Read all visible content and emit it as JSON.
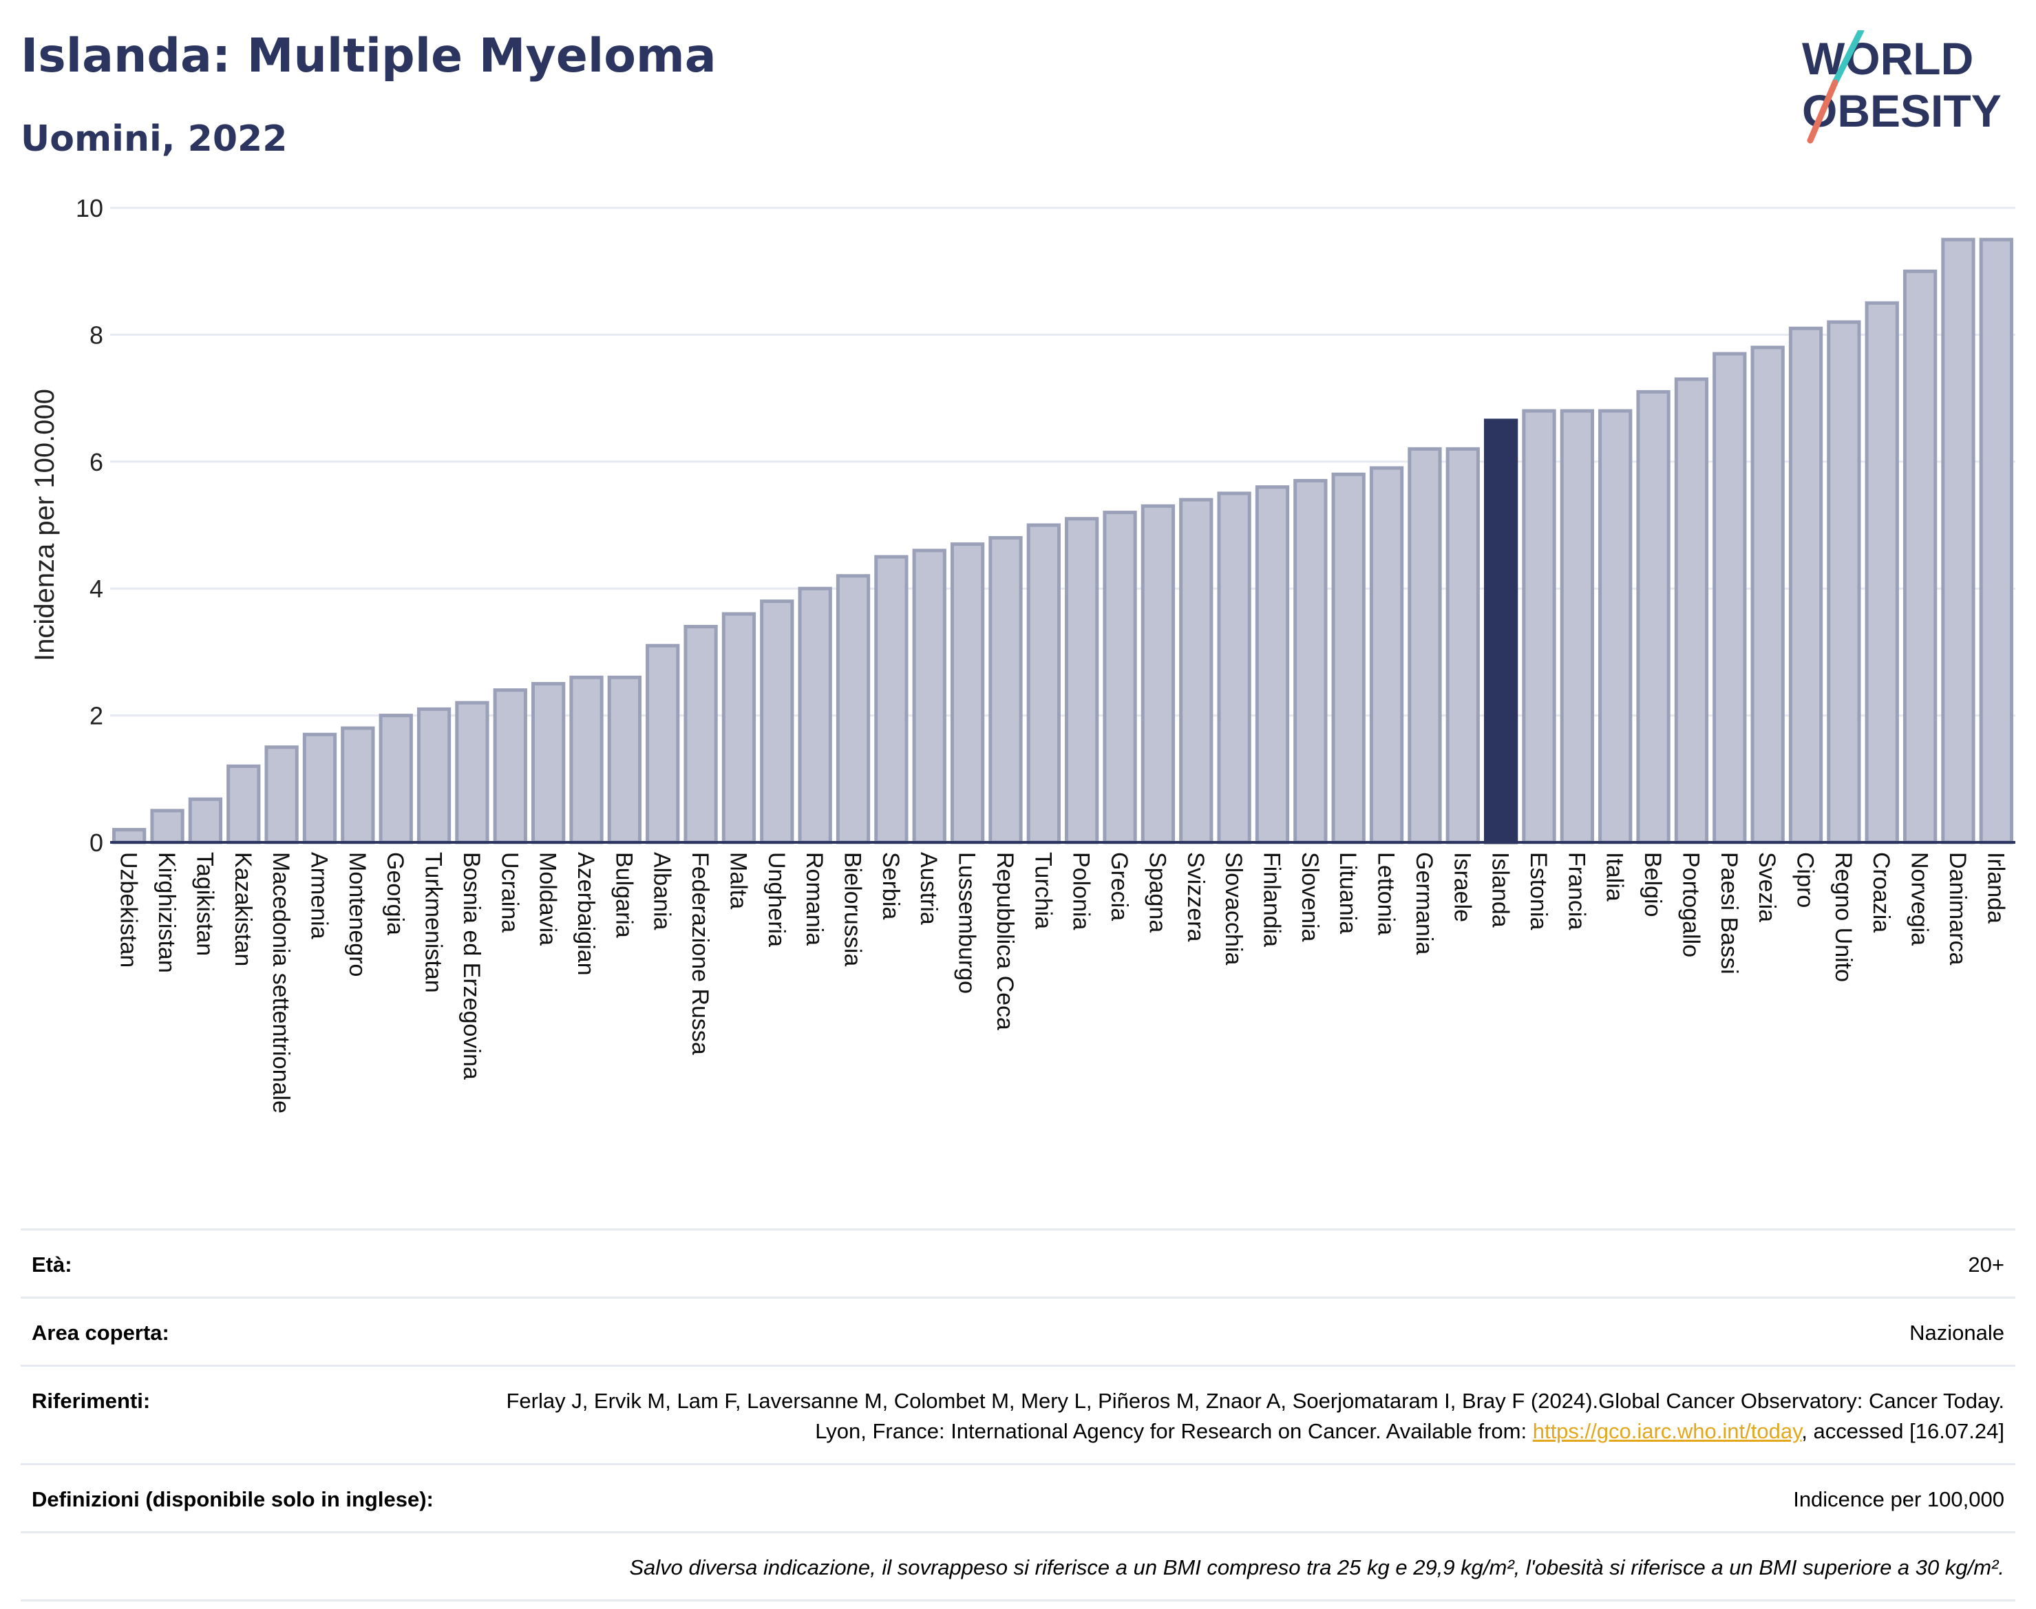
{
  "header": {
    "title": "Islanda: Multiple Myeloma",
    "subtitle": "Uomini, 2022"
  },
  "logo": {
    "line1": "WORLD",
    "line2": "OBESITY",
    "text_color": "#2b3560",
    "slash_colors": [
      "#3cc4c0",
      "#e5735e"
    ]
  },
  "colors": {
    "bar": "#bfc3d3",
    "bar_stroke": "#9aa0b8",
    "highlight": "#2b3560",
    "grid": "#e6e9f0",
    "axis": "#2b3560"
  },
  "chart_data": {
    "type": "bar",
    "ylabel": "Incidenza per 100.000",
    "ylim": [
      0,
      10
    ],
    "yticks": [
      0,
      2,
      4,
      6,
      8,
      10
    ],
    "grid": true,
    "highlight": "Islanda",
    "categories": [
      "Uzbekistan",
      "Kirghizistan",
      "Tagikistan",
      "Kazakistan",
      "Macedonia settentrionale",
      "Armenia",
      "Montenegro",
      "Georgia",
      "Turkmenistan",
      "Bosnia ed Erzegovina",
      "Ucraina",
      "Moldavia",
      "Azerbaigian",
      "Bulgaria",
      "Albania",
      "Federazione Russa",
      "Malta",
      "Ungheria",
      "Romania",
      "Bielorussia",
      "Serbia",
      "Austria",
      "Lussemburgo",
      "Repubblica Ceca",
      "Turchia",
      "Polonia",
      "Grecia",
      "Spagna",
      "Svizzera",
      "Slovacchia",
      "Finlandia",
      "Slovenia",
      "Lituania",
      "Lettonia",
      "Germania",
      "Israele",
      "Islanda",
      "Estonia",
      "Francia",
      "Italia",
      "Belgio",
      "Portogallo",
      "Paesi Bassi",
      "Svezia",
      "Cipro",
      "Regno Unito",
      "Croazia",
      "Norvegia",
      "Danimarca",
      "Irlanda"
    ],
    "values": [
      0.2,
      0.5,
      0.68,
      1.2,
      1.5,
      1.7,
      1.8,
      2.0,
      2.1,
      2.2,
      2.4,
      2.5,
      2.6,
      2.6,
      3.1,
      3.4,
      3.6,
      3.8,
      4.0,
      4.2,
      4.5,
      4.6,
      4.7,
      4.8,
      5.0,
      5.1,
      5.2,
      5.3,
      5.4,
      5.5,
      5.6,
      5.7,
      5.8,
      5.9,
      6.2,
      6.2,
      6.65,
      6.8,
      6.8,
      6.8,
      7.1,
      7.3,
      7.7,
      7.8,
      8.1,
      8.2,
      8.5,
      9.0,
      9.5,
      9.5
    ]
  },
  "info": {
    "eta_label": "Età:",
    "eta_value": "20+",
    "area_label": "Area coperta:",
    "area_value": "Nazionale",
    "ref_label": "Riferimenti:",
    "ref_text_1": "Ferlay J, Ervik M, Lam F, Laversanne M, Colombet M, Mery L, Piñeros M, Znaor A, Soerjomataram I, Bray F (2024).Global Cancer Observatory: Cancer Today. Lyon, France: International Agency for Research on Cancer. Available from: ",
    "ref_link": "https://gco.iarc.who.int/today",
    "ref_text_2": ", accessed [16.07.24]",
    "def_label": "Definizioni (disponibile solo in inglese):",
    "def_value": "Indicence per 100,000",
    "note": "Salvo diversa indicazione, il sovrappeso si riferisce a un BMI compreso tra 25 kg e 29,9 kg/m², l'obesità si riferisce a un BMI superiore a 30 kg/m²."
  }
}
